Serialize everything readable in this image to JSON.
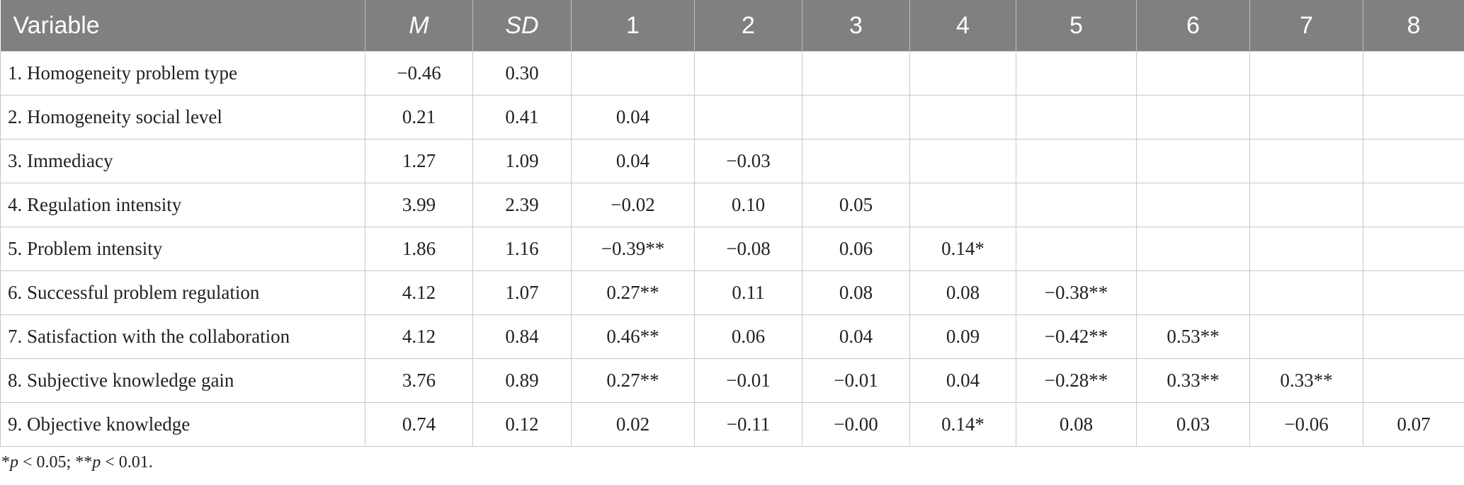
{
  "headers": [
    "Variable",
    "M",
    "SD",
    "1",
    "2",
    "3",
    "4",
    "5",
    "6",
    "7",
    "8"
  ],
  "rows": [
    [
      "1. Homogeneity problem type",
      "−0.46",
      "0.30",
      "",
      "",
      "",
      "",
      "",
      "",
      "",
      ""
    ],
    [
      "2. Homogeneity social level",
      "0.21",
      "0.41",
      "0.04",
      "",
      "",
      "",
      "",
      "",
      "",
      ""
    ],
    [
      "3. Immediacy",
      "1.27",
      "1.09",
      "0.04",
      "−0.03",
      "",
      "",
      "",
      "",
      "",
      ""
    ],
    [
      "4. Regulation intensity",
      "3.99",
      "2.39",
      "−0.02",
      "0.10",
      "0.05",
      "",
      "",
      "",
      "",
      ""
    ],
    [
      "5. Problem intensity",
      "1.86",
      "1.16",
      "−0.39**",
      "−0.08",
      "0.06",
      "0.14*",
      "",
      "",
      "",
      ""
    ],
    [
      "6. Successful problem regulation",
      "4.12",
      "1.07",
      "0.27**",
      "0.11",
      "0.08",
      "0.08",
      "−0.38**",
      "",
      "",
      ""
    ],
    [
      "7. Satisfaction with the collaboration",
      "4.12",
      "0.84",
      "0.46**",
      "0.06",
      "0.04",
      "0.09",
      "−0.42**",
      "0.53**",
      "",
      ""
    ],
    [
      "8. Subjective knowledge gain",
      "3.76",
      "0.89",
      "0.27**",
      "−0.01",
      "−0.01",
      "0.04",
      "−0.28**",
      "0.33**",
      "0.33**",
      ""
    ],
    [
      "9. Objective knowledge",
      "0.74",
      "0.12",
      "0.02",
      "−0.11",
      "−0.00",
      "0.14*",
      "0.08",
      "0.03",
      "−0.06",
      "0.07"
    ]
  ],
  "note": {
    "star1": "*",
    "p1": "p",
    "t1": " < 0.05; **",
    "p2": "p",
    "t2": " < 0.01."
  }
}
